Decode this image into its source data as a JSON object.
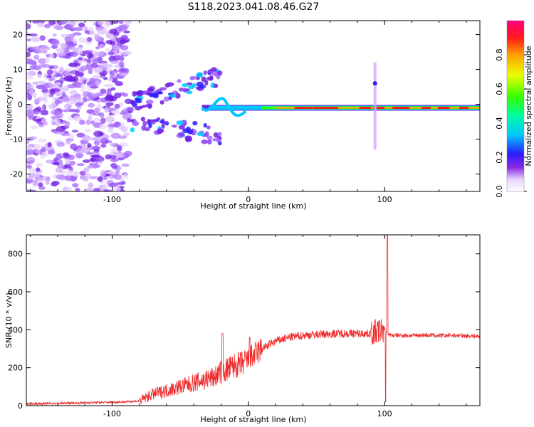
{
  "title": "S118.2023.041.08.46.G27",
  "chart_data": [
    {
      "type": "heatmap",
      "xlabel": "Height of straight line (km)",
      "ylabel": "Frequency (Hz)",
      "xlim": [
        -163,
        170
      ],
      "ylim": [
        -25,
        24
      ],
      "xticks": [
        -100,
        0,
        100
      ],
      "yticks": [
        -20,
        -10,
        0,
        10,
        20
      ],
      "colorbar": {
        "label": "Normalized spectral amplitude",
        "range": [
          0,
          1
        ],
        "ticks": [
          0.0,
          0.2,
          0.4,
          0.6,
          0.8
        ],
        "colormap": "rainbow"
      },
      "features": {
        "noise_region_x": [
          -163,
          -88
        ],
        "dominant_line_x": [
          -18,
          170
        ],
        "dominant_line_frequency_hz": -1,
        "spike_x": 93
      }
    },
    {
      "type": "line",
      "xlabel": "Height of straight line (km)",
      "ylabel": "SNR (10 * v/v)",
      "xlim": [
        -163,
        170
      ],
      "ylim": [
        0,
        900
      ],
      "xticks": [
        -100,
        0,
        100
      ],
      "yticks": [
        0,
        200,
        400,
        600,
        800
      ],
      "line_color": "#ee2a2a",
      "series": [
        {
          "x": [
            -163,
            -140,
            -120,
            -100,
            -90,
            -80,
            -70,
            -60,
            -50,
            -40,
            -35,
            -30,
            -25,
            -20,
            -15,
            -10,
            -5,
            0,
            5,
            10,
            20,
            30,
            40,
            50,
            60,
            70,
            80,
            90,
            95,
            100,
            102,
            105,
            110,
            120,
            130,
            140,
            150,
            160,
            170
          ],
          "values": [
            10,
            12,
            15,
            18,
            20,
            25,
            60,
            80,
            100,
            120,
            130,
            140,
            150,
            180,
            190,
            210,
            220,
            240,
            270,
            300,
            340,
            360,
            370,
            375,
            378,
            380,
            380,
            380,
            390,
            400,
            380,
            370,
            370,
            370,
            372,
            368,
            370,
            368,
            365
          ]
        }
      ],
      "spike": {
        "x": 102,
        "max": 900,
        "min": 20
      }
    }
  ]
}
